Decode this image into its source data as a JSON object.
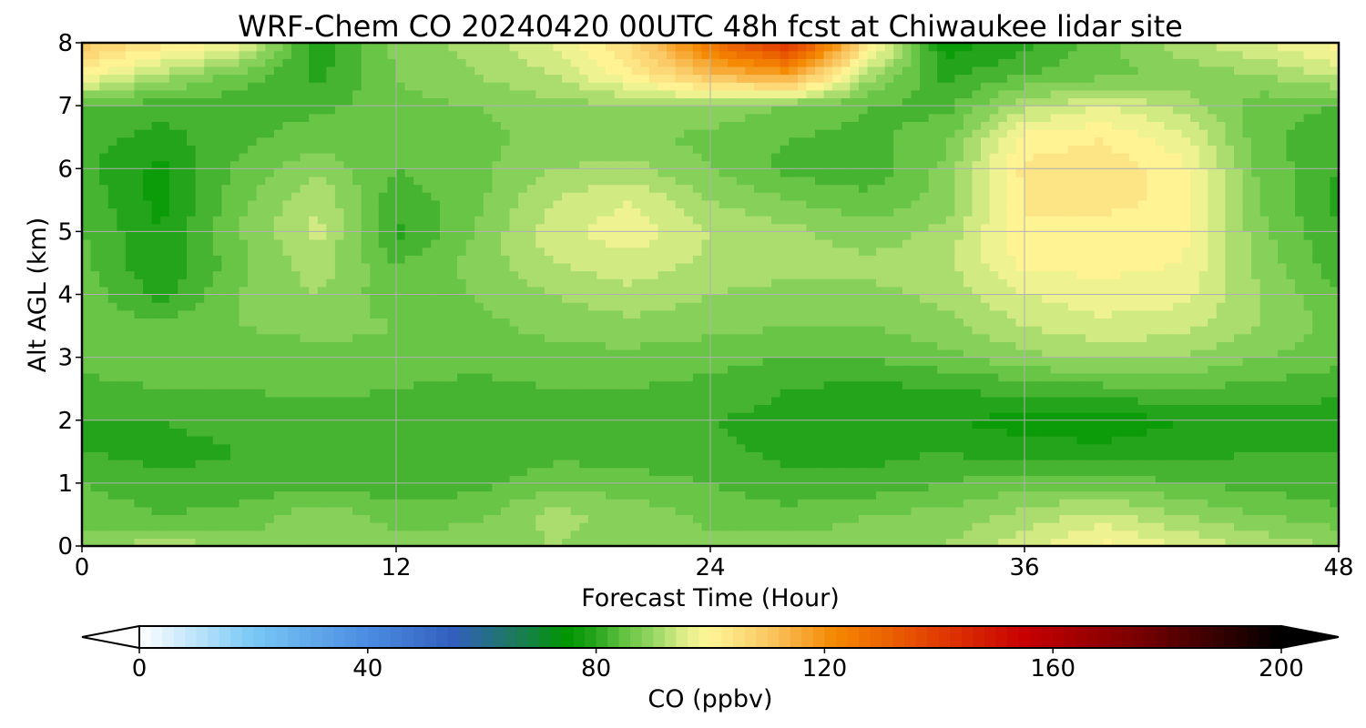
{
  "chart_data": {
    "type": "heatmap",
    "title": "WRF-Chem CO  20240420 00UTC 48h fcst at Chiwaukee lidar site",
    "xlabel": "Forecast Time (Hour)",
    "ylabel": "Alt AGL (km)",
    "xlim": [
      0,
      48
    ],
    "ylim": [
      0,
      8
    ],
    "x_ticks": [
      0,
      12,
      24,
      36,
      48
    ],
    "y_ticks": [
      0,
      1,
      2,
      3,
      4,
      5,
      6,
      7,
      8
    ],
    "grid": true,
    "x": [
      0,
      3,
      6,
      9,
      12,
      15,
      18,
      21,
      24,
      27,
      30,
      33,
      36,
      39,
      42,
      45,
      48
    ],
    "y": [
      0,
      0.5,
      1,
      1.5,
      2,
      2.5,
      3,
      3.5,
      4,
      4.5,
      5,
      5.5,
      6,
      6.5,
      7,
      7.5,
      8
    ],
    "z_rows_by_altitude": [
      [
        88,
        92,
        89,
        87,
        88,
        89,
        90,
        89,
        88,
        89,
        88,
        90,
        95,
        100,
        96,
        92,
        90
      ],
      [
        86,
        84,
        85,
        89,
        86,
        86,
        91,
        89,
        86,
        85,
        87,
        88,
        91,
        94,
        90,
        87,
        85
      ],
      [
        84,
        82,
        82,
        83,
        82,
        83,
        86,
        85,
        84,
        82,
        82,
        84,
        86,
        86,
        84,
        83,
        82
      ],
      [
        81,
        80,
        81,
        81,
        81,
        81,
        83,
        83,
        82,
        80,
        80,
        81,
        79,
        79,
        80,
        81,
        81
      ],
      [
        81,
        81,
        82,
        82,
        82,
        81,
        82,
        82,
        81,
        80,
        79,
        78,
        77,
        76,
        78,
        79,
        79
      ],
      [
        83,
        84,
        84,
        85,
        84,
        83,
        84,
        84,
        83,
        81,
        80,
        81,
        82,
        83,
        84,
        83,
        82
      ],
      [
        85,
        86,
        85,
        86,
        86,
        85,
        86,
        86,
        85,
        84,
        84,
        86,
        89,
        91,
        90,
        87,
        85
      ],
      [
        86,
        85,
        87,
        88,
        87,
        86,
        88,
        89,
        88,
        87,
        87,
        89,
        93,
        95,
        94,
        90,
        86
      ],
      [
        86,
        80,
        87,
        90,
        85,
        87,
        90,
        92,
        90,
        89,
        89,
        91,
        96,
        98,
        97,
        90,
        84
      ],
      [
        85,
        78,
        86,
        92,
        84,
        88,
        93,
        95,
        92,
        91,
        91,
        92,
        100,
        100,
        99,
        89,
        82
      ],
      [
        84,
        78,
        87,
        94,
        80,
        87,
        95,
        98,
        93,
        91,
        88,
        91,
        102,
        101,
        100,
        88,
        81
      ],
      [
        83,
        77,
        86,
        93,
        82,
        86,
        93,
        96,
        90,
        87,
        85,
        88,
        102,
        103,
        101,
        87,
        80
      ],
      [
        82,
        77,
        85,
        89,
        84,
        86,
        90,
        91,
        87,
        83,
        82,
        88,
        103,
        104,
        100,
        86,
        81
      ],
      [
        82,
        80,
        83,
        86,
        85,
        86,
        88,
        88,
        86,
        84,
        83,
        86,
        100,
        102,
        97,
        85,
        82
      ],
      [
        84,
        82,
        82,
        83,
        86,
        87,
        89,
        89,
        89,
        87,
        84,
        83,
        92,
        96,
        92,
        85,
        84
      ],
      [
        100,
        92,
        86,
        80,
        87,
        90,
        93,
        101,
        112,
        118,
        92,
        80,
        84,
        86,
        88,
        90,
        94
      ],
      [
        110,
        103,
        98,
        79,
        88,
        91,
        96,
        106,
        127,
        143,
        104,
        76,
        80,
        86,
        92,
        96,
        100
      ]
    ],
    "colorbar": {
      "label": "CO  (ppbv)",
      "min": 0,
      "max": 200,
      "ticks": [
        0,
        40,
        80,
        120,
        160,
        200
      ],
      "extend": "both"
    }
  }
}
